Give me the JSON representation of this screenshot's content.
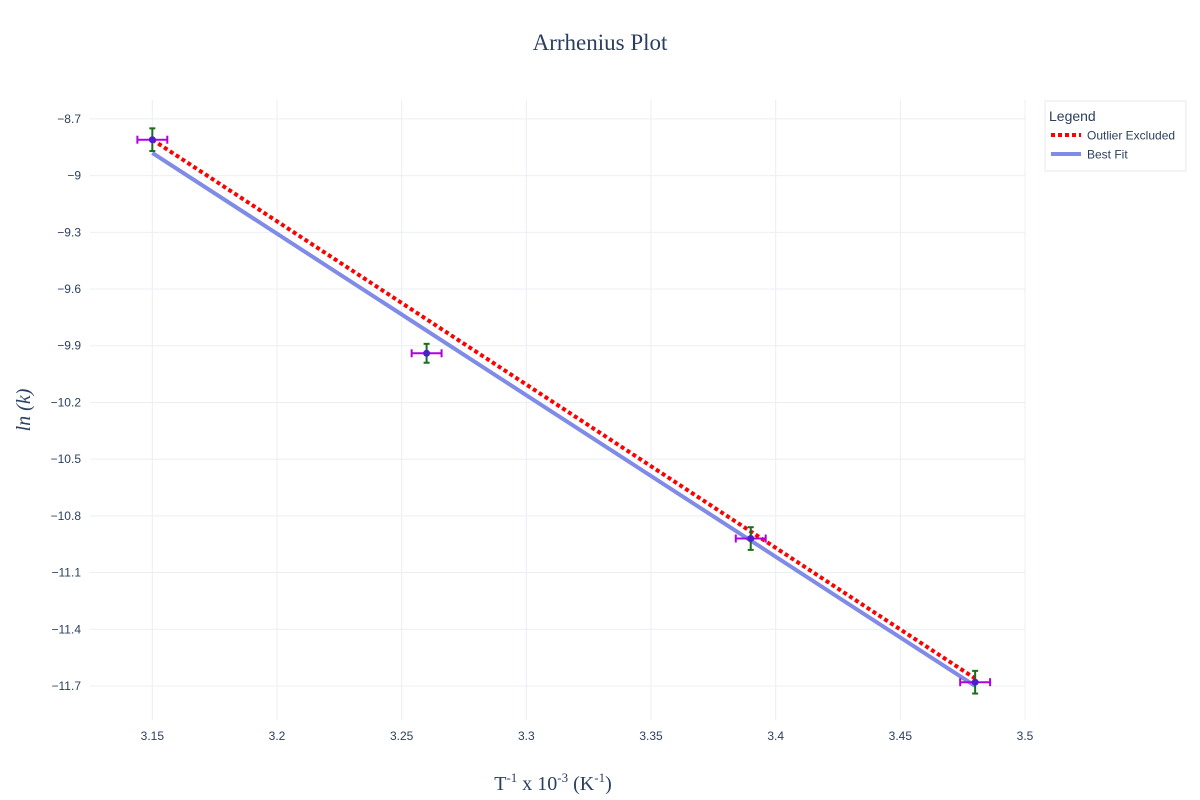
{
  "chart_data": {
    "type": "scatter",
    "title": "Arrhenius Plot",
    "xlabel": {
      "base": "T",
      "sup1": "-1",
      "mid": " x 10",
      "sup2": "-3",
      "unit_open": " (K",
      "sup3": "-1",
      "unit_close": ")"
    },
    "ylabel": "ln (k)",
    "xlim": [
      3.125,
      3.5
    ],
    "ylim": [
      -11.88,
      -8.6
    ],
    "x_ticks": [
      3.15,
      3.2,
      3.25,
      3.3,
      3.35,
      3.4,
      3.45,
      3.5
    ],
    "y_ticks": [
      -8.7,
      -9,
      -9.3,
      -9.6,
      -9.9,
      -10.2,
      -10.5,
      -10.8,
      -11.1,
      -11.4,
      -11.7
    ],
    "x_tick_labels": [
      "3.15",
      "3.2",
      "3.25",
      "3.3",
      "3.35",
      "3.4",
      "3.45",
      "3.5"
    ],
    "y_tick_labels": [
      "−8.7",
      "−9",
      "−9.3",
      "−9.6",
      "−9.9",
      "−10.2",
      "−10.5",
      "−10.8",
      "−11.1",
      "−11.4",
      "−11.7"
    ],
    "grid": true,
    "legend_position": "top-right",
    "legend_title": "Legend",
    "points": {
      "x": [
        3.15,
        3.26,
        3.39,
        3.48
      ],
      "y": [
        -8.81,
        -9.94,
        -10.92,
        -11.68
      ],
      "x_error": [
        0.006,
        0.006,
        0.006,
        0.006
      ],
      "y_error": [
        0.06,
        0.05,
        0.06,
        0.06
      ],
      "marker_color": "#4b1fd1",
      "x_error_color": "#b000e0",
      "y_error_color": "#1a6e1a"
    },
    "series": [
      {
        "name": "Outlier Excluded",
        "x": [
          3.15,
          3.48
        ],
        "y": [
          -8.81,
          -11.66
        ],
        "color": "#ff0000",
        "dash": "dot"
      },
      {
        "name": "Best Fit",
        "x": [
          3.15,
          3.48
        ],
        "y": [
          -8.88,
          -11.7
        ],
        "color": "#7f8be6",
        "dash": "solid"
      }
    ]
  }
}
